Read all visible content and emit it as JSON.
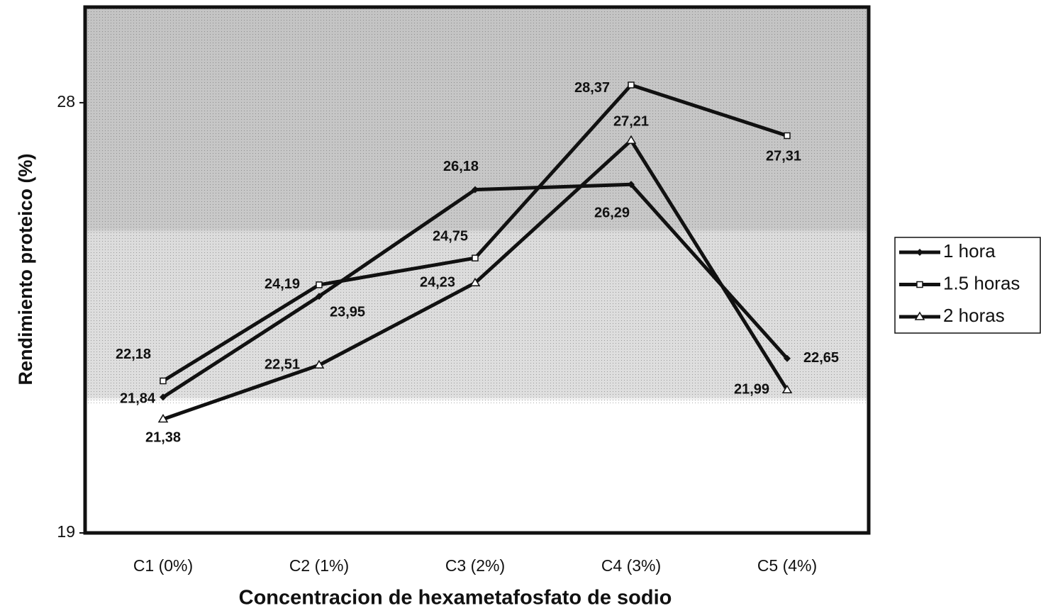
{
  "chart_data": {
    "type": "line",
    "x_label": "Concentracion de hexametafosfato de sodio",
    "y_label": "Rendimiento proteico (%)",
    "categories": [
      "C1 (0%)",
      "C2 (1%)",
      "C3 (2%)",
      "C4 (3%)",
      "C5 (4%)"
    ],
    "series": [
      {
        "name": "1  hora",
        "color": "#111111",
        "marker": "diamond",
        "values": [
          21.84,
          23.95,
          26.18,
          26.29,
          22.65
        ],
        "value_labels": [
          "21,84",
          "23,95",
          "26,18",
          "26,29",
          "22,65"
        ]
      },
      {
        "name": "1.5 horas",
        "color": "#111111",
        "marker": "square",
        "values": [
          22.18,
          24.19,
          24.75,
          28.37,
          27.31
        ],
        "value_labels": [
          "22,18",
          "24,19",
          "24,75",
          "28,37",
          "27,31"
        ]
      },
      {
        "name": "2  horas",
        "color": "#111111",
        "marker": "triangle",
        "values": [
          21.38,
          22.51,
          24.23,
          27.21,
          21.99
        ],
        "value_labels": [
          "21,38",
          "22,51",
          "24,23",
          "27,21",
          "21,99"
        ]
      }
    ],
    "ylim": [
      19,
      30
    ],
    "yticks": [
      19,
      28
    ],
    "legend": "right"
  }
}
